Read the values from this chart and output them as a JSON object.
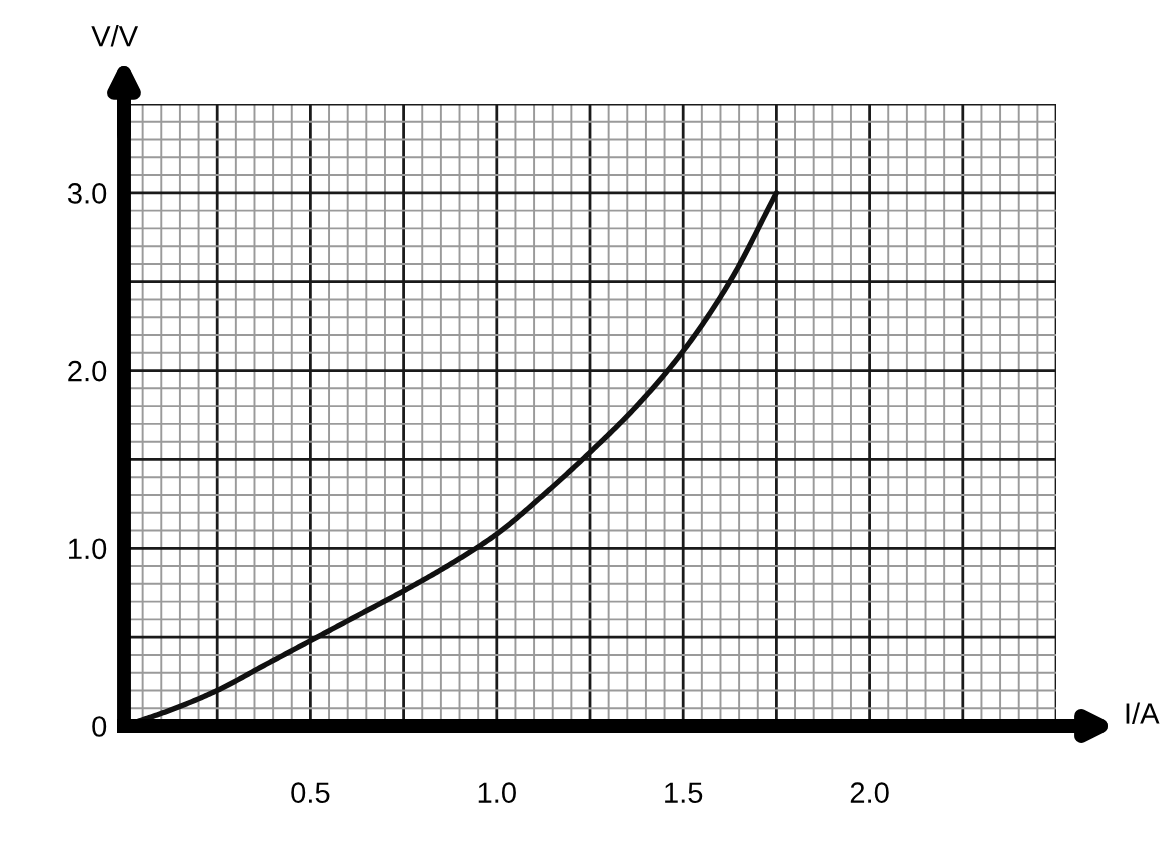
{
  "chart_data": {
    "type": "line",
    "xlabel": "I/A",
    "ylabel": "V/V",
    "x": [
      0,
      0.125,
      0.25,
      0.375,
      0.5,
      0.625,
      0.75,
      0.875,
      1.0,
      1.125,
      1.25,
      1.375,
      1.5,
      1.625,
      1.75
    ],
    "series": [
      {
        "color": "#111111",
        "values": [
          0,
          0.09,
          0.2,
          0.34,
          0.48,
          0.62,
          0.76,
          0.91,
          1.08,
          1.3,
          1.54,
          1.8,
          2.11,
          2.5,
          3.0
        ]
      }
    ],
    "xlim": [
      0,
      2.5
    ],
    "ylim": [
      0,
      3.5
    ],
    "xticks": [
      {
        "value": 0.25,
        "label": null
      },
      {
        "value": 0.5,
        "label": "0.5"
      },
      {
        "value": 0.75,
        "label": null
      },
      {
        "value": 1,
        "label": "1.0"
      },
      {
        "value": 1.25,
        "label": null
      },
      {
        "value": 1.5,
        "label": "1.5"
      },
      {
        "value": 1.75,
        "label": null
      },
      {
        "value": 2,
        "label": "2.0"
      },
      {
        "value": 2.25,
        "label": null
      },
      {
        "value": 2.5,
        "label": null
      }
    ],
    "yticks": [
      {
        "value": 0,
        "label": "0"
      },
      {
        "value": 0.5,
        "label": null
      },
      {
        "value": 1,
        "label": "1.0"
      },
      {
        "value": 1.5,
        "label": null
      },
      {
        "value": 2,
        "label": "2.0"
      },
      {
        "value": 2.5,
        "label": null
      },
      {
        "value": 3,
        "label": "3.0"
      },
      {
        "value": 3.5,
        "label": null
      }
    ],
    "grid": true,
    "line_style": "solid"
  }
}
